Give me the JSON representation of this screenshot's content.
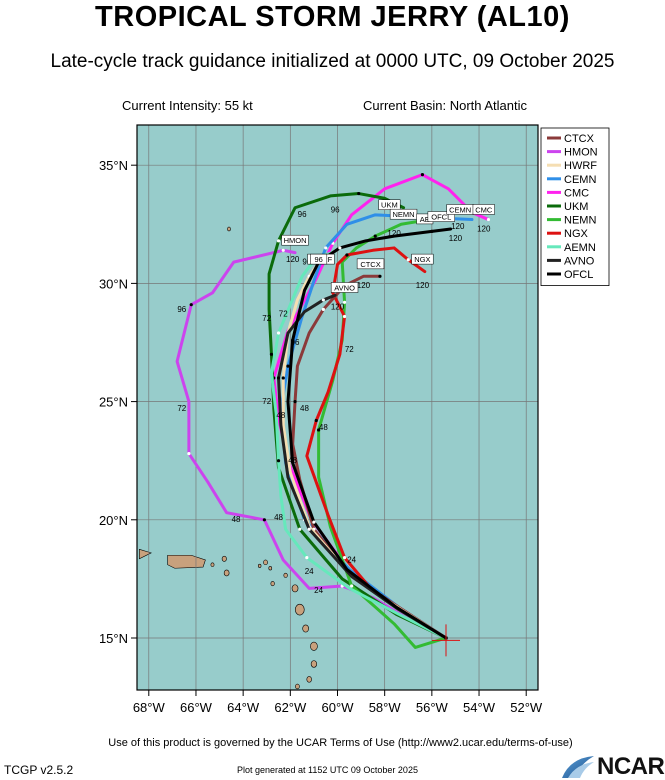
{
  "header": {
    "title": "TROPICAL STORM JERRY (AL10)",
    "subtitle": "Late-cycle track guidance initialized at 0000 UTC, 09 October 2025",
    "intensity": "Current Intensity: 55 kt",
    "basin": "Current Basin: North Atlantic"
  },
  "footer": {
    "terms": "Use of this product is governed by the UCAR Terms of Use (http://www2.ucar.edu/terms-of-use)",
    "version": "TCGP v2.5.2",
    "generated": "Plot generated at 1152 UTC   09 October 2025",
    "logo": "NCAR"
  },
  "map": {
    "lon_range": [
      -68.5,
      -51.5
    ],
    "lat_range": [
      12.8,
      36.7
    ],
    "lon_ticks": [
      -68,
      -66,
      -64,
      -62,
      -60,
      -58,
      -56,
      -54,
      -52
    ],
    "lon_tick_labels": [
      "68°W",
      "66°W",
      "64°W",
      "62°W",
      "60°W",
      "58°W",
      "56°W",
      "54°W",
      "52°W"
    ],
    "lat_ticks": [
      15,
      20,
      25,
      30,
      35
    ],
    "lat_tick_labels": [
      "15°N",
      "20°N",
      "25°N",
      "30°N",
      "35°N"
    ],
    "grid": true,
    "ocean_color": "#97cccb",
    "land_color": "#c8a17d",
    "current_position": {
      "lon": -55.4,
      "lat": 14.9
    }
  },
  "legend": {
    "placement": "top-right",
    "entries": [
      {
        "name": "CTCX",
        "color": "#8b3a3a"
      },
      {
        "name": "HMON",
        "color": "#cc44ee"
      },
      {
        "name": "HWRF",
        "color": "#f5deb3"
      },
      {
        "name": "CEMN",
        "color": "#2f8fe8"
      },
      {
        "name": "CMC",
        "color": "#ff22ee"
      },
      {
        "name": "UKM",
        "color": "#0b6b0b"
      },
      {
        "name": "NEMN",
        "color": "#33bb33"
      },
      {
        "name": "NGX",
        "color": "#dd1111"
      },
      {
        "name": "AEMN",
        "color": "#66e8bb"
      },
      {
        "name": "AVNO",
        "color": "#222222"
      },
      {
        "name": "OFCL",
        "color": "#000000"
      }
    ]
  },
  "chart_data": {
    "type": "map",
    "series": [
      {
        "name": "HMON",
        "color": "#cc44ee",
        "points": [
          [
            -55.4,
            15.0
          ],
          [
            -57,
            15.8
          ],
          [
            -58.5,
            16.7
          ],
          [
            -59.8,
            17.2
          ],
          [
            -61.2,
            17.1
          ],
          [
            -62.3,
            18.3
          ],
          [
            -63.1,
            20.0
          ],
          [
            -64.7,
            20.3
          ],
          [
            -65.5,
            21.6
          ],
          [
            -66.3,
            22.8
          ],
          [
            -66.3,
            25.0
          ],
          [
            -66.8,
            26.7
          ],
          [
            -66.2,
            29.1
          ],
          [
            -65.3,
            29.6
          ],
          [
            -64.4,
            30.9
          ],
          [
            -62.3,
            31.4
          ],
          [
            -61.8,
            31.3
          ]
        ],
        "labels": [
          {
            "t": "24",
            "lon": -60.8,
            "lat": 16.9
          },
          {
            "t": "48",
            "lon": -64.3,
            "lat": 19.9
          },
          {
            "t": "72",
            "lon": -66.6,
            "lat": 24.6
          },
          {
            "t": "96",
            "lon": -66.6,
            "lat": 28.8
          },
          {
            "t": "120",
            "lon": -61.9,
            "lat": 30.9
          }
        ]
      },
      {
        "name": "CMC",
        "color": "#ff22ee",
        "points": [
          [
            -55.4,
            15.0
          ],
          [
            -57.3,
            16.2
          ],
          [
            -59.4,
            17.7
          ],
          [
            -61.1,
            20.0
          ],
          [
            -62.1,
            22.5
          ],
          [
            -62.5,
            24.3
          ],
          [
            -62.7,
            26.0
          ],
          [
            -62.1,
            28.0
          ],
          [
            -60.9,
            30.2
          ],
          [
            -60.2,
            31.7
          ],
          [
            -59.4,
            32.9
          ],
          [
            -58.0,
            34.0
          ],
          [
            -56.4,
            34.6
          ],
          [
            -55.3,
            34.0
          ],
          [
            -54.3,
            33.0
          ],
          [
            -53.6,
            32.7
          ]
        ],
        "labels": [
          {
            "t": "96",
            "lon": -60.1,
            "lat": 33.0
          },
          {
            "t": "120",
            "lon": -53.8,
            "lat": 32.2
          }
        ]
      },
      {
        "name": "UKM",
        "color": "#0b6b0b",
        "points": [
          [
            -55.4,
            15.0
          ],
          [
            -57.5,
            16.0
          ],
          [
            -59.8,
            17.5
          ],
          [
            -61.6,
            19.6
          ],
          [
            -62.5,
            22.2
          ],
          [
            -62.7,
            24.7
          ],
          [
            -62.8,
            27.0
          ],
          [
            -62.9,
            28.9
          ],
          [
            -62.9,
            30.4
          ],
          [
            -62.5,
            31.8
          ],
          [
            -61.8,
            33.2
          ],
          [
            -60.3,
            33.7
          ],
          [
            -59.1,
            33.8
          ],
          [
            -58.0,
            33.6
          ],
          [
            -57.2,
            33.2
          ]
        ],
        "labels": [
          {
            "t": "72",
            "lon": -63.0,
            "lat": 28.4
          },
          {
            "t": "96",
            "lon": -61.5,
            "lat": 32.8
          },
          {
            "t": "120",
            "lon": -57.2,
            "lat": 32.7
          }
        ]
      },
      {
        "name": "CEMN",
        "color": "#2f8fe8",
        "points": [
          [
            -55.4,
            15.0
          ],
          [
            -57.4,
            16.3
          ],
          [
            -59.5,
            17.9
          ],
          [
            -61.4,
            20.0
          ],
          [
            -62.2,
            22.4
          ],
          [
            -62.4,
            24.7
          ],
          [
            -62.1,
            26.5
          ],
          [
            -61.5,
            28.6
          ],
          [
            -61.0,
            30.1
          ],
          [
            -60.5,
            31.5
          ],
          [
            -59.6,
            32.5
          ],
          [
            -58.4,
            32.9
          ],
          [
            -56.5,
            32.8
          ],
          [
            -54.3,
            32.7
          ]
        ],
        "labels": [
          {
            "t": "120",
            "lon": -54.9,
            "lat": 32.3
          }
        ]
      },
      {
        "name": "NEMN",
        "color": "#33bb33",
        "points": [
          [
            -55.4,
            15.0
          ],
          [
            -56.7,
            14.6
          ],
          [
            -57.6,
            15.6
          ],
          [
            -59.4,
            17.2
          ],
          [
            -60.3,
            19.7
          ],
          [
            -60.8,
            21.8
          ],
          [
            -60.8,
            23.8
          ],
          [
            -60.2,
            25.9
          ],
          [
            -59.8,
            27.6
          ],
          [
            -59.7,
            29.2
          ],
          [
            -59.8,
            30.9
          ],
          [
            -59.2,
            31.5
          ],
          [
            -58.4,
            32.0
          ],
          [
            -57.3,
            32.5
          ],
          [
            -56.1,
            32.7
          ]
        ],
        "labels": [
          {
            "t": "72",
            "lon": -59.5,
            "lat": 27.1
          },
          {
            "t": "120",
            "lon": -57.6,
            "lat": 32.0
          }
        ]
      },
      {
        "name": "NGX",
        "color": "#dd1111",
        "points": [
          [
            -55.4,
            15.0
          ],
          [
            -57.2,
            16.1
          ],
          [
            -58.6,
            17.1
          ],
          [
            -59.7,
            18.4
          ],
          [
            -60.4,
            20.2
          ],
          [
            -61.3,
            22.7
          ],
          [
            -60.9,
            24.2
          ],
          [
            -60.4,
            25.4
          ],
          [
            -59.9,
            27.0
          ],
          [
            -59.7,
            28.6
          ],
          [
            -60.2,
            29.6
          ],
          [
            -60.0,
            30.8
          ],
          [
            -59.6,
            31.2
          ],
          [
            -58.5,
            31.4
          ],
          [
            -57.6,
            31.5
          ],
          [
            -57.0,
            31.0
          ],
          [
            -56.3,
            30.5
          ]
        ],
        "labels": [
          {
            "t": "48",
            "lon": -60.6,
            "lat": 23.8
          },
          {
            "t": "120",
            "lon": -56.4,
            "lat": 29.8
          }
        ]
      },
      {
        "name": "CTCX",
        "color": "#8b3a3a",
        "points": [
          [
            -55.4,
            15.0
          ],
          [
            -57.4,
            16.3
          ],
          [
            -59.5,
            17.7
          ],
          [
            -61.0,
            19.6
          ],
          [
            -61.6,
            21.7
          ],
          [
            -61.9,
            23.2
          ],
          [
            -61.8,
            25.0
          ],
          [
            -61.7,
            26.5
          ],
          [
            -61.2,
            27.9
          ],
          [
            -60.6,
            28.9
          ],
          [
            -59.7,
            29.9
          ],
          [
            -58.9,
            30.3
          ],
          [
            -58.2,
            30.3
          ]
        ],
        "labels": [
          {
            "t": "48",
            "lon": -61.4,
            "lat": 24.6
          },
          {
            "t": "120",
            "lon": -58.9,
            "lat": 29.8
          }
        ]
      },
      {
        "name": "HWRF",
        "color": "#f5deb3",
        "points": [
          [
            -55.4,
            15.0
          ],
          [
            -57.3,
            16.2
          ],
          [
            -59.4,
            17.6
          ],
          [
            -61.2,
            19.7
          ],
          [
            -62.0,
            22.0
          ],
          [
            -62.3,
            24.0
          ],
          [
            -62.3,
            26.0
          ],
          [
            -62.1,
            27.9
          ],
          [
            -61.7,
            29.3
          ],
          [
            -61.2,
            30.3
          ],
          [
            -60.7,
            31.0
          ]
        ],
        "labels": [
          {
            "t": "72",
            "lon": -62.3,
            "lat": 28.6
          },
          {
            "t": "96",
            "lon": -61.3,
            "lat": 30.8
          }
        ]
      },
      {
        "name": "AEMN",
        "color": "#66e8bb",
        "points": [
          [
            -55.4,
            15.0
          ],
          [
            -57.2,
            15.9
          ],
          [
            -59.5,
            17.1
          ],
          [
            -61.3,
            18.4
          ],
          [
            -62.2,
            19.6
          ],
          [
            -62.4,
            21.0
          ],
          [
            -62.5,
            22.5
          ],
          [
            -62.6,
            24.5
          ],
          [
            -62.8,
            26.2
          ],
          [
            -62.5,
            27.9
          ],
          [
            -62.0,
            29.1
          ],
          [
            -61.5,
            30.3
          ],
          [
            -60.9,
            31.1
          ],
          [
            -60.2,
            31.3
          ]
        ],
        "labels": [
          {
            "t": "24",
            "lon": -61.2,
            "lat": 17.7
          },
          {
            "t": "48",
            "lon": -62.5,
            "lat": 20.0
          },
          {
            "t": "72",
            "lon": -63.0,
            "lat": 24.9
          }
        ]
      },
      {
        "name": "AVNO",
        "color": "#222222",
        "points": [
          [
            -55.4,
            15.0
          ],
          [
            -57.4,
            16.2
          ],
          [
            -59.4,
            17.6
          ],
          [
            -61.2,
            19.6
          ],
          [
            -62.1,
            21.8
          ],
          [
            -62.4,
            24.0
          ],
          [
            -62.5,
            26.0
          ],
          [
            -62.1,
            27.9
          ],
          [
            -61.4,
            28.8
          ],
          [
            -60.6,
            29.3
          ],
          [
            -60.1,
            29.5
          ]
        ],
        "labels": [
          {
            "t": "48",
            "lon": -62.4,
            "lat": 24.3
          },
          {
            "t": "96",
            "lon": -61.8,
            "lat": 27.4
          },
          {
            "t": "120",
            "lon": -60.0,
            "lat": 28.9
          }
        ]
      },
      {
        "name": "OFCL",
        "color": "#000000",
        "points": [
          [
            -55.4,
            15.0
          ],
          [
            -57.5,
            16.3
          ],
          [
            -59.6,
            17.9
          ],
          [
            -61.0,
            19.9
          ],
          [
            -61.9,
            22.4
          ],
          [
            -62.1,
            25.0
          ],
          [
            -61.9,
            27.6
          ],
          [
            -61.4,
            29.7
          ],
          [
            -60.8,
            30.9
          ],
          [
            -59.9,
            31.5
          ],
          [
            -58.8,
            31.8
          ],
          [
            -57.6,
            32.0
          ],
          [
            -56.0,
            32.2
          ],
          [
            -55.2,
            32.3
          ]
        ],
        "labels": [
          {
            "t": "24",
            "lon": -59.4,
            "lat": 18.2
          },
          {
            "t": "48",
            "lon": -61.9,
            "lat": 22.4
          },
          {
            "t": "120",
            "lon": -55.0,
            "lat": 31.8
          }
        ]
      }
    ],
    "end_boxes": [
      {
        "text": "HMON",
        "lon": -61.8,
        "lat": 31.7
      },
      {
        "text": "UKM",
        "lon": -57.8,
        "lat": 33.2
      },
      {
        "text": "NEMN",
        "lon": -57.2,
        "lat": 32.8
      },
      {
        "text": "AE",
        "lon": -56.3,
        "lat": 32.6
      },
      {
        "text": "OFCL",
        "lon": -55.6,
        "lat": 32.7
      },
      {
        "text": "CEMN",
        "lon": -54.8,
        "lat": 33.0
      },
      {
        "text": "CMC",
        "lon": -53.8,
        "lat": 33.0
      },
      {
        "text": "NGX",
        "lon": -56.4,
        "lat": 30.9
      },
      {
        "text": "CTCX",
        "lon": -58.6,
        "lat": 30.7
      },
      {
        "text": "HWRF",
        "lon": -60.7,
        "lat": 30.9
      },
      {
        "text": "AVNO",
        "lon": -59.7,
        "lat": 29.7
      },
      {
        "text": "96",
        "lon": -60.8,
        "lat": 30.9
      }
    ]
  }
}
